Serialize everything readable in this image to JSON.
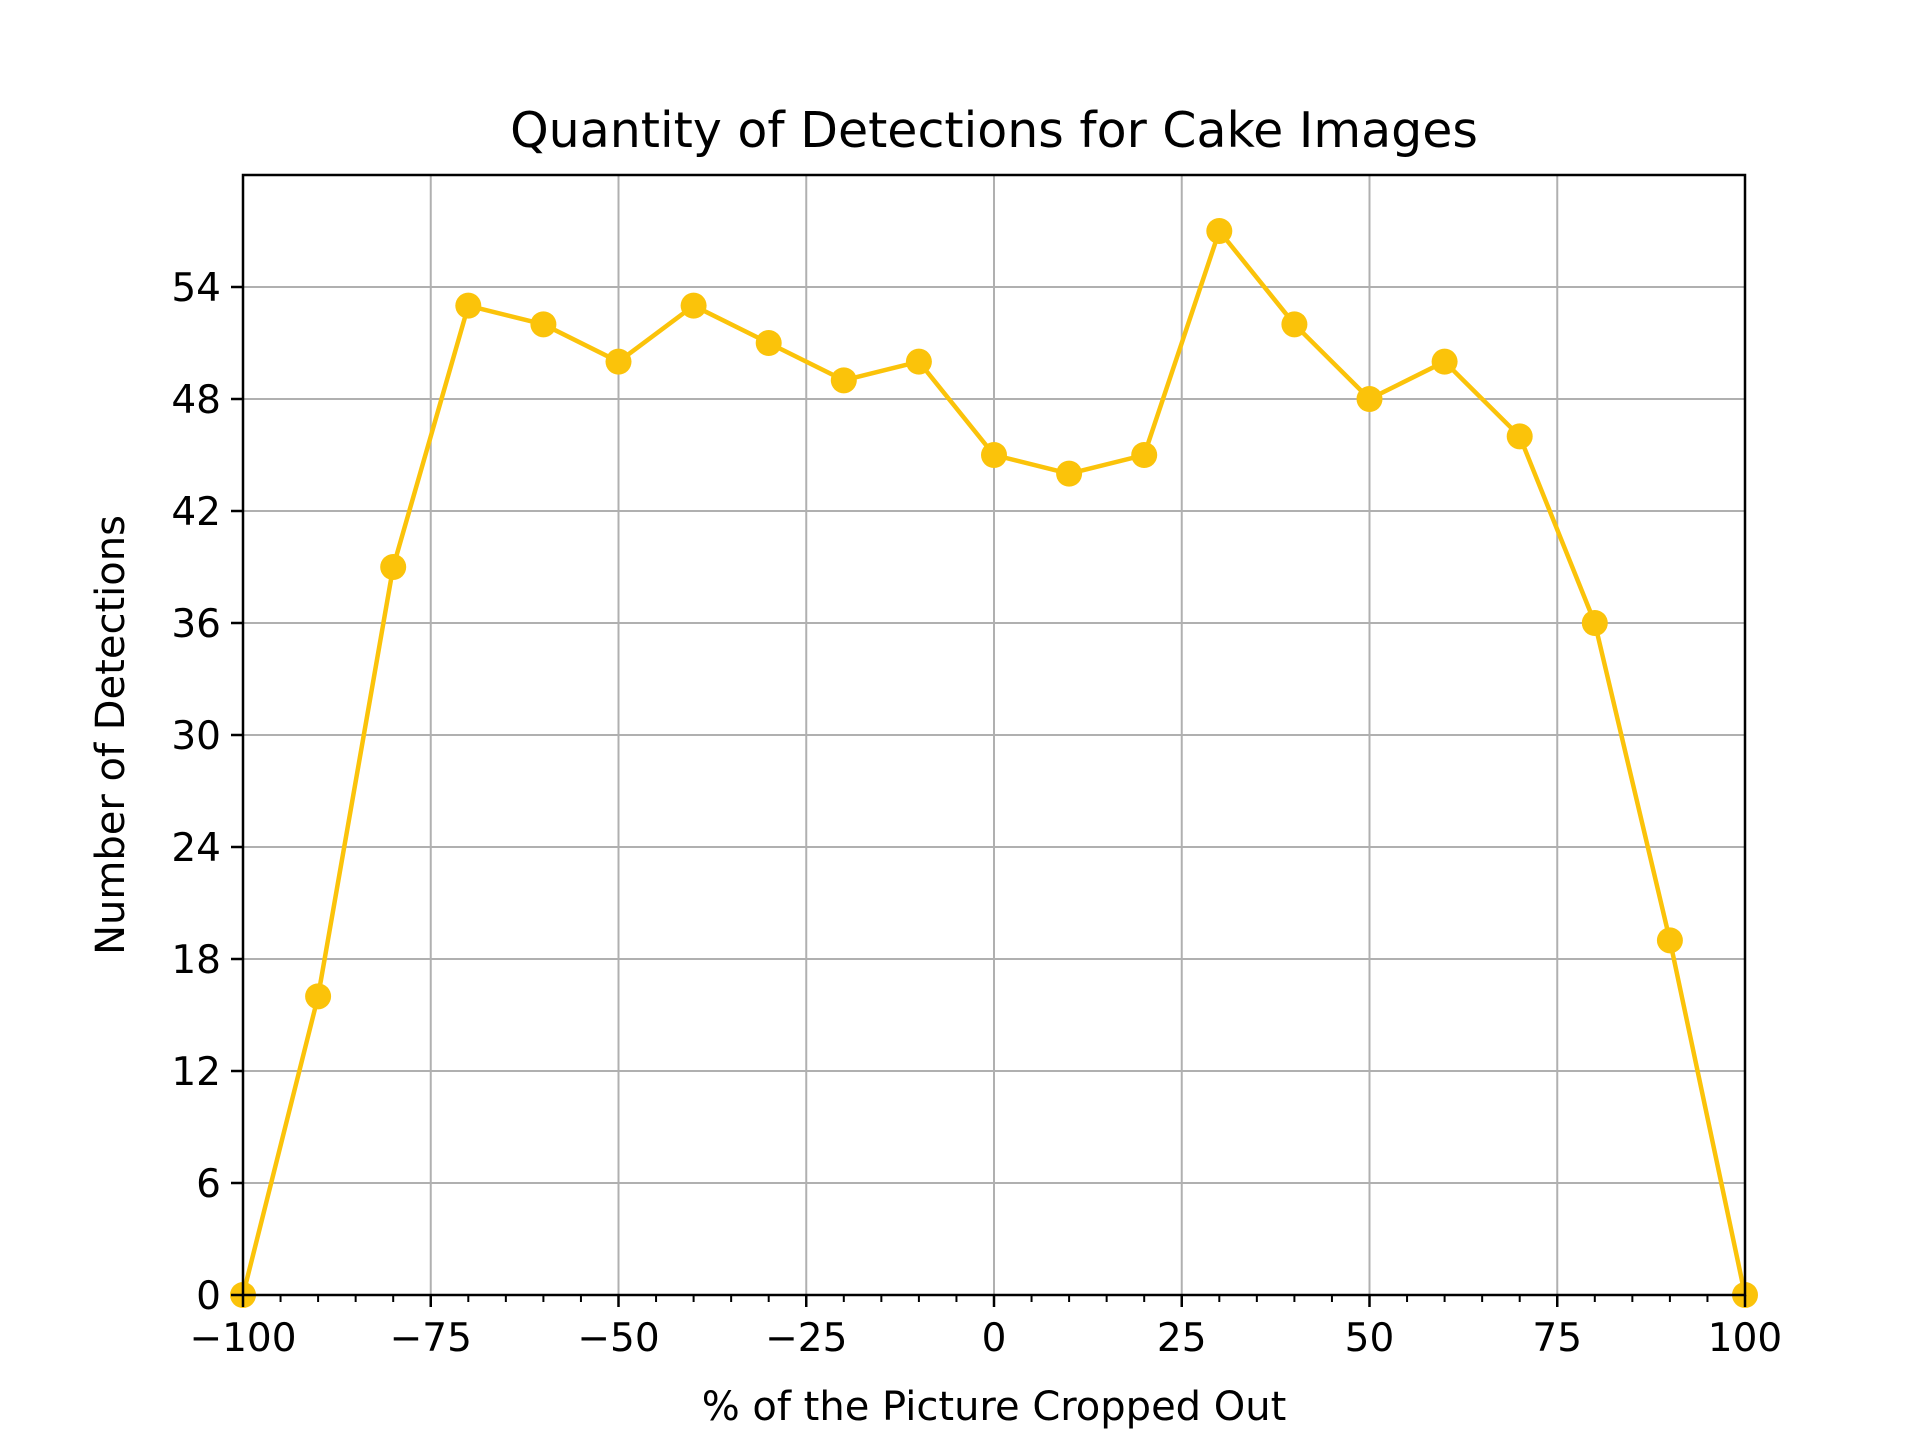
{
  "chart_data": {
    "type": "line",
    "title": "Quantity of Detections for Cake Images",
    "xlabel": "% of the Picture Cropped Out",
    "ylabel": "Number of Detections",
    "xlim": [
      -100,
      100
    ],
    "ylim": [
      0,
      60
    ],
    "grid": true,
    "x_ticks": [
      -100,
      -75,
      -50,
      -25,
      0,
      25,
      50,
      75,
      100
    ],
    "x_tick_labels": [
      "−100",
      "−75",
      "−50",
      "−25",
      "0",
      "25",
      "50",
      "75",
      "100"
    ],
    "x_minor_step": 5,
    "y_ticks": [
      0,
      6,
      12,
      18,
      24,
      30,
      36,
      42,
      48,
      54
    ],
    "y_tick_labels": [
      "0",
      "6",
      "12",
      "18",
      "24",
      "30",
      "36",
      "42",
      "48",
      "54"
    ],
    "series": [
      {
        "color": "#fbc30a",
        "x": [
          -100,
          -90,
          -80,
          -70,
          -60,
          -50,
          -40,
          -30,
          -20,
          -10,
          0,
          10,
          20,
          30,
          40,
          50,
          60,
          70,
          80,
          90,
          100
        ],
        "values": [
          0,
          16,
          39,
          53,
          52,
          50,
          53,
          51,
          49,
          50,
          45,
          44,
          45,
          57,
          52,
          48,
          50,
          46,
          36,
          19,
          0
        ]
      }
    ]
  }
}
